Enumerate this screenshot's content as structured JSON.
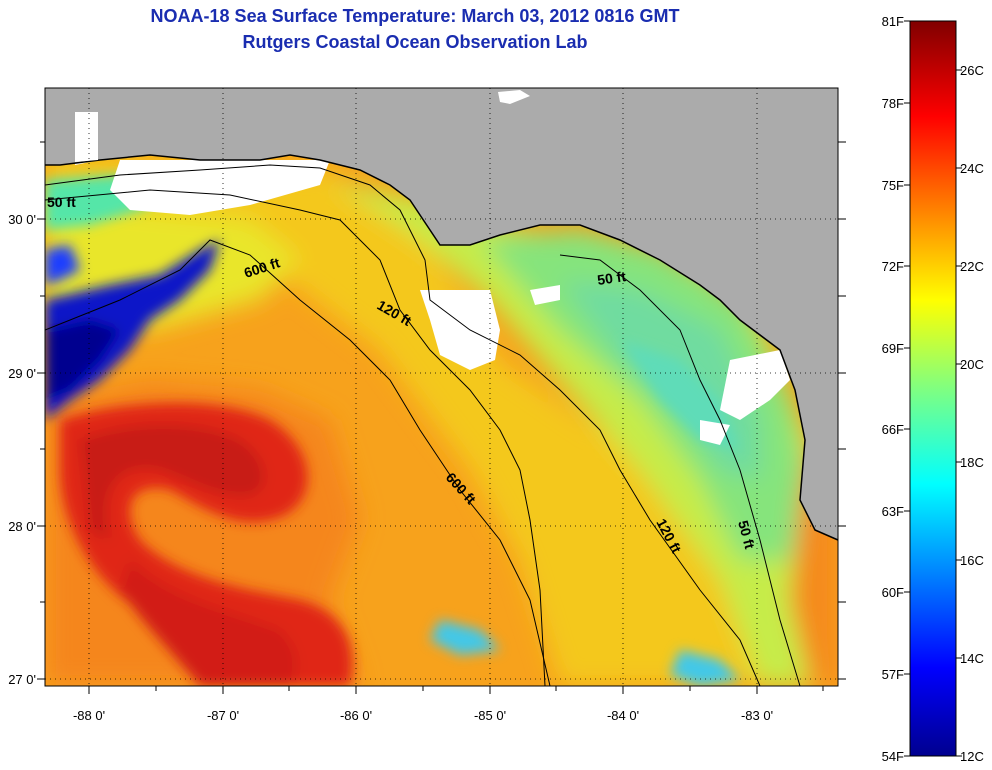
{
  "title": {
    "line1": "NOAA-18 Sea Surface Temperature:  March 03, 2012 0816 GMT",
    "line2": "Rutgers Coastal Ocean Observation Lab"
  },
  "map": {
    "lon_labels": [
      "-88 0'",
      "-87 0'",
      "-86 0'",
      "-85 0'",
      "-84 0'",
      "-83 0'"
    ],
    "lat_labels": [
      "30 0'",
      "29 0'",
      "28 0'",
      "27 0'"
    ],
    "contour_labels": [
      "50 ft",
      "600 ft",
      "120 ft",
      "50 ft",
      "600 ft",
      "120 ft",
      "50 ft"
    ],
    "colors": {
      "land": "#ababab",
      "cloud": "#ffffff",
      "title": "#1a2db0"
    }
  },
  "colorbar": {
    "fahrenheit_labels": [
      "81F",
      "78F",
      "75F",
      "72F",
      "69F",
      "66F",
      "63F",
      "60F",
      "57F",
      "54F"
    ],
    "celsius_labels": [
      "26C",
      "24C",
      "22C",
      "20C",
      "18C",
      "16C",
      "14C",
      "12C"
    ]
  }
}
